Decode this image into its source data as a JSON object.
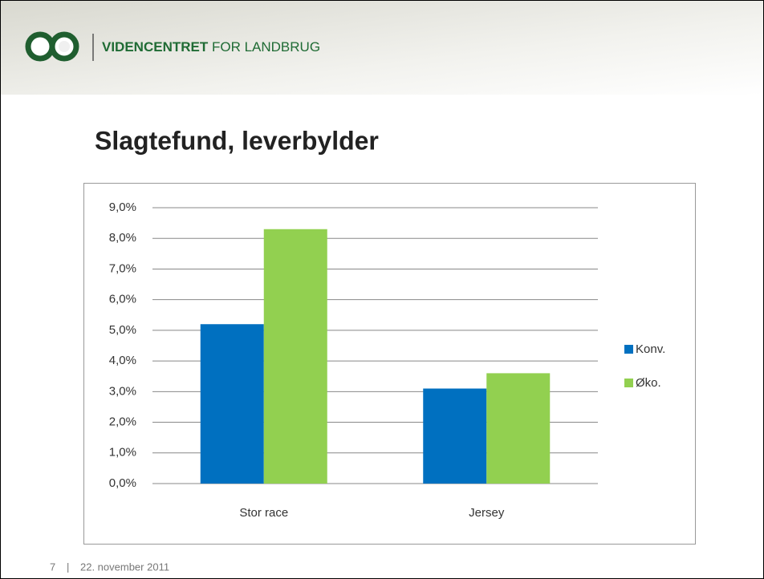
{
  "header": {
    "brand_bold": "VIDENCENTRET",
    "brand_rest": "FOR LANDBRUG"
  },
  "chart_data": {
    "type": "bar",
    "title": "Slagtefund, leverbylder",
    "categories": [
      "Stor race",
      "Jersey"
    ],
    "series": [
      {
        "name": "Konv.",
        "color": "#0070c0",
        "values": [
          5.2,
          3.1
        ]
      },
      {
        "name": "Øko.",
        "color": "#92d050",
        "values": [
          8.3,
          3.6
        ]
      }
    ],
    "ylim": [
      0,
      9
    ],
    "yticks": [
      {
        "value": 0,
        "label": "0,0%"
      },
      {
        "value": 1,
        "label": "1,0%"
      },
      {
        "value": 2,
        "label": "2,0%"
      },
      {
        "value": 3,
        "label": "3,0%"
      },
      {
        "value": 4,
        "label": "4,0%"
      },
      {
        "value": 5,
        "label": "5,0%"
      },
      {
        "value": 6,
        "label": "6,0%"
      },
      {
        "value": 7,
        "label": "7,0%"
      },
      {
        "value": 8,
        "label": "8,0%"
      },
      {
        "value": 9,
        "label": "9,0%"
      }
    ],
    "grid": true,
    "legend": "right"
  },
  "footer": {
    "page": "7",
    "separator": "|",
    "date": "22. november 2011"
  }
}
